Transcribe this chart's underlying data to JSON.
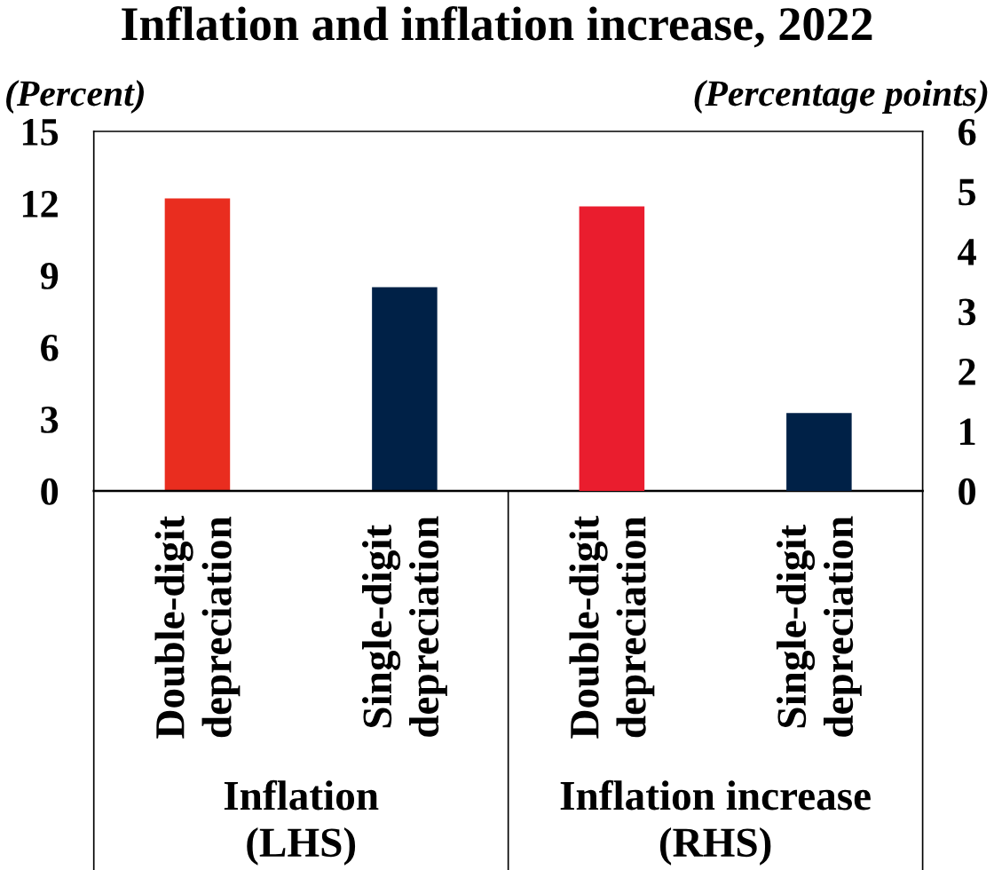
{
  "chart_data": {
    "type": "bar",
    "title": "Inflation and inflation increase, 2022",
    "ylabel": "(Percent)",
    "y2label": "(Percentage points)",
    "categories": [
      "Double-digit\ndepreciation",
      "Single-digit\ndepreciation",
      "Double-digit\ndepreciation",
      "Single-digit\ndepreciation"
    ],
    "series": [
      {
        "colors": [
          "#e92d1f",
          "#002147",
          null,
          null
        ],
        "values": [
          12.2,
          8.5,
          null,
          null
        ]
      },
      {
        "axis": "y2",
        "colors": [
          null,
          null,
          "#ea1d2e",
          "#002147"
        ],
        "values": [
          null,
          null,
          4.75,
          1.3
        ]
      }
    ],
    "ylim": [
      0,
      15
    ],
    "yticks": [
      0,
      3,
      6,
      9,
      12,
      15
    ],
    "y2lim": [
      0,
      6
    ],
    "y2ticks": [
      0,
      1,
      2,
      3,
      4,
      5,
      6
    ],
    "annotations": [
      "Inflation\n(LHS)",
      "Inflation increase\n(RHS)"
    ]
  }
}
